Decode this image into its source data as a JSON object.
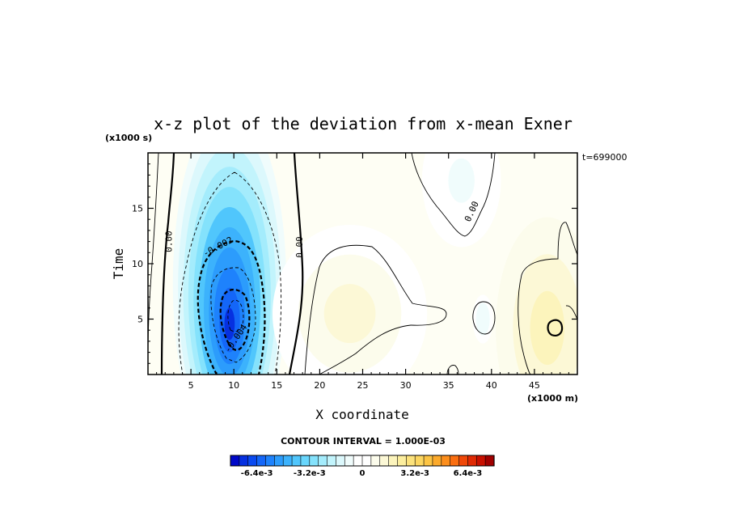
{
  "chart_data": {
    "type": "heatmap",
    "title": "x-z plot of the deviation from x-mean Exner",
    "xlabel": "X coordinate",
    "ylabel": "Time",
    "x_unit": "(x1000 m)",
    "y_unit": "(x1000 s)",
    "time_label": "t=699000",
    "xlim": [
      0,
      50
    ],
    "ylim": [
      0,
      20
    ],
    "x_ticks": [
      5,
      10,
      15,
      20,
      25,
      30,
      35,
      40,
      45
    ],
    "y_ticks": [
      5,
      10,
      15
    ],
    "contour_interval_label": "CONTOUR INTERVAL = 1.000E-03",
    "contour_labels": [
      {
        "text": "0.00",
        "x": 2.8,
        "y": 12
      },
      {
        "text": "-0.002",
        "x": 8.3,
        "y": 11.3
      },
      {
        "text": "-0.004",
        "x": 10.5,
        "y": 3.1
      },
      {
        "text": "0.00",
        "x": 18.0,
        "y": 11.5
      },
      {
        "text": "0.00",
        "x": 38.0,
        "y": 14.6
      }
    ],
    "colorbar": {
      "min": -0.008,
      "max": 0.008,
      "tick_labels": [
        "-6.4e-3",
        "-3.2e-3",
        "0",
        "3.2e-3",
        "6.4e-3"
      ],
      "tick_values": [
        -0.0064,
        -0.0032,
        0,
        0.0032,
        0.0064
      ],
      "colors": [
        "#0008c8",
        "#0630e0",
        "#0a4af0",
        "#1466f8",
        "#1e82fc",
        "#2c9cfc",
        "#3cb2fc",
        "#50c6fc",
        "#68d6fc",
        "#84e2fc",
        "#a4ecfc",
        "#c2f4fc",
        "#dcf8fc",
        "#f0fcfc",
        "#ffffff",
        "#ffffff",
        "#fcfcec",
        "#fcf8d6",
        "#fcf4bc",
        "#fcee9e",
        "#fce27c",
        "#fcd660",
        "#fcc444",
        "#fcaa2c",
        "#fc8e1c",
        "#fa6e10",
        "#f04808",
        "#e02a04",
        "#c81000",
        "#a00000"
      ],
      "tick_label_fill": "#000000"
    },
    "features": [
      {
        "name": "negative-min",
        "x": 9.5,
        "y": 4.2,
        "value": -0.007
      },
      {
        "name": "positive-max-left",
        "x": 23.5,
        "y": 5.5,
        "value": 0.0012
      },
      {
        "name": "positive-max-right",
        "x": 46.5,
        "y": 4.2,
        "value": 0.0018
      },
      {
        "name": "negative-top-right",
        "x": 36.5,
        "y": 17.5,
        "value": -0.0008
      },
      {
        "name": "negative-cell",
        "x": 39.0,
        "y": 5.0,
        "value": -0.0009
      }
    ]
  }
}
